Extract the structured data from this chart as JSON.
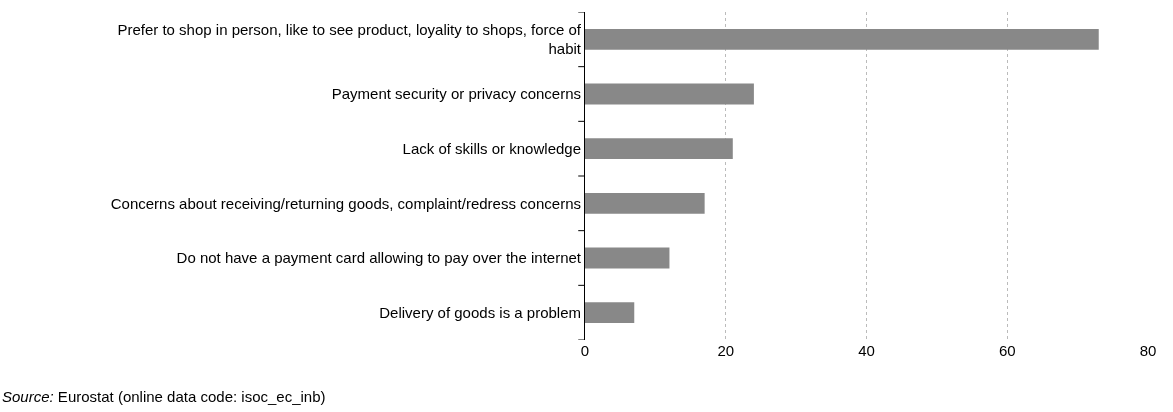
{
  "chart_data": {
    "type": "bar",
    "orientation": "horizontal",
    "categories": [
      "Prefer to shop in person, like to see product, loyality to shops, force of habit",
      "Payment security or privacy concerns",
      "Lack of skills or knowledge",
      "Concerns about receiving/returning goods, complaint/redress concerns",
      "Do not have a payment card allowing to pay over the internet",
      "Delivery of goods is a problem"
    ],
    "values": [
      73,
      24,
      21,
      17,
      12,
      7
    ],
    "color": "#888888",
    "xlim": [
      0,
      80
    ],
    "xticks": [
      0,
      20,
      40,
      60,
      80
    ],
    "grid": "x",
    "annotations": [
      "Source: Eurostat (online data code: isoc_ec_inb)"
    ]
  }
}
